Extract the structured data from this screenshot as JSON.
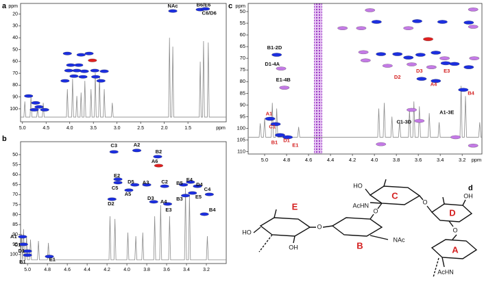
{
  "chart_data": [
    {
      "type": "contour",
      "panel_label": "a",
      "xlabel": "ppm",
      "ylabel": "ppm",
      "xlim": [
        5.04,
        0.69
      ],
      "ylim": [
        11,
        111
      ],
      "xticks": [
        {
          "value": 5,
          "label": "5.0"
        },
        4.5,
        {
          "value": 4,
          "label": "4.0"
        },
        3.5,
        {
          "value": 3,
          "label": "3.0"
        },
        2.5,
        {
          "value": 2,
          "label": "2.0"
        },
        1.5
      ],
      "yticks": [
        20,
        30,
        40,
        50,
        60,
        70,
        80,
        90,
        100
      ],
      "series": [
        {
          "color": "#1c2fe0",
          "x": [
            1.82,
            1.24,
            1.13,
            4.05,
            3.76,
            3.59,
            3.98,
            3.81,
            4.02,
            3.85,
            3.69,
            3.47,
            3.27,
            3.91,
            3.72,
            3.45,
            4.1,
            3.34,
            4.87,
            4.72,
            4.65,
            4.75,
            4.53
          ],
          "y": [
            17.4,
            16.2,
            15.6,
            53.3,
            54.4,
            53.3,
            63.1,
            63.1,
            67.7,
            67.7,
            68.3,
            67.7,
            68.3,
            72.4,
            73.0,
            73.0,
            76.4,
            76.4,
            89.2,
            95.0,
            98.4,
            100.8,
            100.8
          ]
        },
        {
          "color": "#e02020",
          "x": [
            3.52
          ],
          "y": [
            59.1
          ]
        }
      ],
      "trace": {
        "color": "#8a8a8a",
        "x": [
          5.04,
          4.97,
          4.95,
          4.93,
          4.84,
          4.82,
          4.8,
          4.7,
          4.68,
          4.66,
          4.58,
          4.56,
          4.54,
          4.07,
          4.05,
          4.03,
          3.96,
          3.94,
          3.92,
          3.87,
          3.85,
          3.83,
          3.78,
          3.76,
          3.74,
          3.7,
          3.68,
          3.66,
          3.57,
          3.55,
          3.53,
          3.48,
          3.46,
          3.44,
          3.39,
          3.37,
          3.35,
          3.29,
          3.27,
          3.25,
          3.12,
          3.1,
          3.08,
          1.91,
          1.89,
          1.87,
          1.84,
          1.82,
          1.8,
          1.26,
          1.24,
          1.22,
          1.19,
          1.17,
          1.15,
          1.09,
          1.07,
          1.05,
          0.69
        ],
        "y": [
          107,
          107,
          93.8,
          107,
          107,
          89.2,
          107,
          107,
          99.6,
          107,
          107,
          95.0,
          107,
          107,
          83.4,
          107,
          107,
          74.7,
          107,
          107,
          89.2,
          107,
          107,
          86.3,
          107,
          107,
          76.4,
          107,
          107,
          83.4,
          107,
          107,
          69.5,
          107,
          107,
          73.0,
          107,
          107,
          83.4,
          107,
          107,
          95.0,
          107,
          107,
          40.0,
          107,
          107,
          47.5,
          107,
          107,
          60.2,
          107,
          107,
          42.8,
          107,
          107,
          44.0,
          107,
          107
        ]
      },
      "annotations": [
        {
          "text": "NAc",
          "x": 1.82,
          "y": 13.3,
          "color": "#111111"
        },
        {
          "text": "B6/E6",
          "x": 1.17,
          "y": 12.5,
          "color": "#111111"
        },
        {
          "text": "C6/D6",
          "x": 1.05,
          "y": 19.5,
          "color": "#111111"
        }
      ]
    },
    {
      "type": "contour",
      "panel_label": "b",
      "xlim": [
        5.07,
        3.0
      ],
      "ylim": [
        43.5,
        104.5
      ],
      "xticks": [
        {
          "value": 5,
          "label": "5.0"
        },
        4.8,
        4.6,
        4.4,
        4.2,
        {
          "value": 4,
          "label": "4.0"
        },
        3.8,
        3.6,
        3.4,
        3.2
      ],
      "yticks": [
        50,
        55,
        60,
        65,
        70,
        75,
        80,
        85,
        90,
        95,
        100
      ],
      "series": [
        {
          "color": "#1c2fe0",
          "x": [
            4.13,
            3.9,
            3.69,
            4.09,
            4.09,
            3.92,
            3.8,
            3.98,
            3.62,
            3.43,
            3.36,
            3.29,
            3.34,
            3.17,
            3.41,
            4.15,
            3.73,
            3.59,
            3.22,
            5.05,
            5.04,
            5.0,
            5.0,
            4.78
          ],
          "y": [
            48.6,
            47.9,
            51.0,
            62.3,
            64.0,
            65.1,
            65.1,
            67.8,
            65.8,
            65.1,
            63.7,
            65.8,
            69.2,
            69.9,
            70.5,
            72.3,
            73.6,
            74.7,
            79.8,
            91.1,
            94.9,
            98.3,
            100.3,
            101.0
          ]
        },
        {
          "color": "#e02020",
          "x": [
            3.68
          ],
          "y": [
            55.5
          ]
        }
      ],
      "trace": {
        "color": "#8a8a8a",
        "x": [
          5.07,
          5.06,
          5.05,
          5.05,
          5.04,
          5.03,
          5.02,
          5.01,
          5.0,
          4.98,
          4.97,
          4.96,
          4.9,
          4.89,
          4.88,
          4.8,
          4.79,
          4.78,
          4.18,
          4.17,
          4.16,
          4.13,
          4.12,
          4.11,
          4.0,
          3.99,
          3.98,
          3.92,
          3.91,
          3.9,
          3.85,
          3.84,
          3.83,
          3.73,
          3.72,
          3.71,
          3.67,
          3.66,
          3.65,
          3.58,
          3.57,
          3.56,
          3.42,
          3.41,
          3.4,
          3.38,
          3.37,
          3.36,
          3.2,
          3.19,
          3.18,
          3.0
        ],
        "y": [
          102.7,
          89.7,
          102.7,
          102.7,
          87.3,
          102.7,
          102.7,
          90.8,
          102.7,
          102.7,
          92.5,
          102.7,
          102.7,
          93.2,
          102.7,
          102.7,
          94.2,
          102.7,
          102.7,
          80.8,
          102.7,
          102.7,
          82.2,
          102.7,
          102.7,
          89.0,
          102.7,
          102.7,
          90.8,
          102.7,
          102.7,
          89.0,
          102.7,
          102.7,
          80.8,
          102.7,
          102.7,
          75.3,
          102.7,
          102.7,
          80.8,
          102.7,
          102.7,
          66.8,
          102.7,
          102.7,
          70.2,
          102.7,
          102.7,
          90.8,
          102.7,
          102.7
        ]
      },
      "annotations": [
        {
          "text": "C3",
          "x": 4.13,
          "y": 45.5,
          "color": "#111111"
        },
        {
          "text": "A2",
          "x": 3.9,
          "y": 45.2,
          "color": "#111111"
        },
        {
          "text": "B2",
          "x": 3.68,
          "y": 48.6,
          "color": "#111111"
        },
        {
          "text": "A6",
          "x": 3.72,
          "y": 53.4,
          "color": "#111111"
        },
        {
          "text": "E2",
          "x": 4.1,
          "y": 60.6,
          "color": "#111111"
        },
        {
          "text": "C5",
          "x": 4.12,
          "y": 66.8,
          "color": "#111111"
        },
        {
          "text": "D5",
          "x": 3.96,
          "y": 63.7,
          "color": "#111111"
        },
        {
          "text": "A3",
          "x": 3.81,
          "y": 64.0,
          "color": "#111111"
        },
        {
          "text": "A5",
          "x": 3.99,
          "y": 69.9,
          "color": "#111111"
        },
        {
          "text": "C2",
          "x": 3.62,
          "y": 63.7,
          "color": "#111111"
        },
        {
          "text": "B5",
          "x": 3.47,
          "y": 64.4,
          "color": "#111111"
        },
        {
          "text": "E4",
          "x": 3.37,
          "y": 62.7,
          "color": "#111111"
        },
        {
          "text": "D4",
          "x": 3.27,
          "y": 65.1,
          "color": "#111111"
        },
        {
          "text": "C4",
          "x": 3.19,
          "y": 67.5,
          "color": "#111111"
        },
        {
          "text": "E5",
          "x": 3.28,
          "y": 71.2,
          "color": "#111111"
        },
        {
          "text": "B3",
          "x": 3.47,
          "y": 72.3,
          "color": "#111111"
        },
        {
          "text": "D2",
          "x": 4.16,
          "y": 74.7,
          "color": "#111111"
        },
        {
          "text": "D3",
          "x": 3.76,
          "y": 71.9,
          "color": "#111111"
        },
        {
          "text": "A4",
          "x": 3.63,
          "y": 73.6,
          "color": "#111111"
        },
        {
          "text": "E3",
          "x": 3.58,
          "y": 77.7,
          "color": "#111111"
        },
        {
          "text": "B4",
          "x": 3.14,
          "y": 77.7,
          "color": "#111111"
        },
        {
          "text": "A1",
          "x": 5.14,
          "y": 91.1,
          "color": "#111111"
        },
        {
          "text": "C1",
          "x": 5.1,
          "y": 95.2,
          "color": "#111111"
        },
        {
          "text": "D1",
          "x": 5.06,
          "y": 98.3,
          "color": "#111111"
        },
        {
          "text": "B1",
          "x": 5.05,
          "y": 103.8,
          "color": "#111111"
        },
        {
          "text": "E1",
          "x": 4.75,
          "y": 102.7,
          "color": "#111111"
        }
      ]
    },
    {
      "type": "contour",
      "panel_label": "c",
      "xlabel": "ppm",
      "ylabel": "ppm",
      "xlim": [
        5.15,
        3.02
      ],
      "ylim": [
        46.5,
        111
      ],
      "xticks": [
        {
          "value": 5,
          "label": "5.0"
        },
        4.8,
        4.6,
        4.4,
        4.2,
        {
          "value": 4,
          "label": "4.0"
        },
        3.8,
        3.6,
        3.4,
        3.2
      ],
      "yticks": [
        50,
        55,
        60,
        65,
        70,
        75,
        80,
        85,
        90,
        95,
        100,
        105,
        110
      ],
      "series": [
        {
          "color": "#c47ae6",
          "x": [
            4.1,
            3.09,
            4.08,
            3.88,
            3.66,
            3.48,
            3.36,
            4.85,
            4.82,
            4.12,
            4.29,
            3.69,
            3.1,
            3.1,
            4.04,
            3.66,
            3.59,
            3.26,
            3.1,
            3.94
          ],
          "y": [
            67.4,
            70.0,
            70.9,
            73.2,
            72.6,
            73.8,
            70.0,
            74.4,
            82.6,
            57.1,
            57.1,
            57.1,
            56.5,
            49.1,
            49.4,
            92.1,
            96.8,
            103.8,
            107.4,
            106.8
          ]
        },
        {
          "color": "#1c2fe0",
          "x": [
            3.98,
            3.61,
            3.38,
            3.14,
            3.94,
            3.79,
            3.69,
            3.58,
            3.44,
            3.35,
            3.27,
            3.14,
            3.57,
            3.44,
            3.19,
            4.89,
            4.95,
            4.9,
            4.86,
            4.79
          ],
          "y": [
            54.4,
            54.1,
            54.4,
            54.7,
            68.2,
            68.2,
            69.7,
            68.5,
            67.6,
            72.1,
            72.4,
            73.8,
            78.8,
            79.7,
            83.5,
            68.5,
            95.9,
            98.2,
            102.9,
            103.8
          ]
        },
        {
          "color": "#e02020",
          "x": [
            3.51
          ],
          "y": [
            61.8
          ]
        }
      ],
      "trace": {
        "color": "#8a8a8a",
        "x": [
          5.15,
          5.05,
          5.04,
          5.03,
          5.01,
          5.0,
          4.99,
          4.94,
          4.93,
          4.92,
          4.9,
          4.89,
          4.88,
          4.7,
          4.69,
          4.68,
          3.97,
          3.96,
          3.95,
          3.92,
          3.91,
          3.9,
          3.85,
          3.84,
          3.83,
          3.78,
          3.77,
          3.76,
          3.69,
          3.68,
          3.67,
          3.65,
          3.64,
          3.63,
          3.6,
          3.59,
          3.58,
          3.51,
          3.5,
          3.49,
          3.42,
          3.41,
          3.4,
          3.22,
          3.21,
          3.2,
          3.18,
          3.17,
          3.16,
          3.05,
          3.04,
          3.03,
          3.02
        ],
        "y": [
          103.8,
          103.8,
          97.9,
          103.8,
          103.8,
          95.6,
          103.8,
          103.8,
          89.1,
          103.8,
          103.8,
          91.5,
          103.8,
          103.8,
          99.4,
          103.8,
          103.8,
          91.5,
          103.8,
          103.8,
          89.1,
          103.8,
          103.8,
          95.0,
          103.8,
          103.8,
          96.5,
          103.8,
          103.8,
          92.1,
          103.8,
          103.8,
          88.5,
          103.8,
          103.8,
          90.6,
          103.8,
          103.8,
          93.5,
          103.8,
          103.8,
          97.4,
          103.8,
          103.8,
          81.8,
          103.8,
          103.8,
          86.2,
          103.8,
          103.8,
          97.4,
          103.8,
          103.8
        ]
      },
      "annotations": [
        {
          "text": "B1-2D",
          "x": 4.91,
          "y": 65.6,
          "color": "#111111"
        },
        {
          "text": "D1-4A",
          "x": 4.93,
          "y": 72.6,
          "color": "#111111"
        },
        {
          "text": "E1-4B",
          "x": 4.83,
          "y": 79.4,
          "color": "#111111"
        },
        {
          "text": "A1-3E",
          "x": 3.34,
          "y": 93.2,
          "color": "#111111"
        },
        {
          "text": "C1-3D",
          "x": 3.73,
          "y": 97.4,
          "color": "#111111"
        },
        {
          "text": "A1",
          "x": 4.96,
          "y": 93.8,
          "color": "#d42020"
        },
        {
          "text": "C1",
          "x": 4.93,
          "y": 99.4,
          "color": "#d42020"
        },
        {
          "text": "B1",
          "x": 4.91,
          "y": 106.2,
          "color": "#d42020"
        },
        {
          "text": "D1",
          "x": 4.8,
          "y": 105.3,
          "color": "#d42020"
        },
        {
          "text": "E1",
          "x": 4.72,
          "y": 107.4,
          "color": "#d42020"
        },
        {
          "text": "D2",
          "x": 3.79,
          "y": 78.2,
          "color": "#d42020"
        },
        {
          "text": "D3",
          "x": 3.59,
          "y": 75.6,
          "color": "#d42020"
        },
        {
          "text": "E3",
          "x": 3.34,
          "y": 75.6,
          "color": "#d42020"
        },
        {
          "text": "A4",
          "x": 3.46,
          "y": 81.2,
          "color": "#d42020"
        },
        {
          "text": "B4",
          "x": 3.12,
          "y": 85.0,
          "color": "#d42020"
        }
      ]
    }
  ],
  "structure": {
    "panel_label": "d",
    "residues": [
      "E",
      "C",
      "D",
      "B",
      "A"
    ],
    "groups": [
      "HO",
      "OH",
      "O",
      "NAc",
      "O",
      "HO",
      "AcHN",
      "O",
      "OH",
      "O",
      "AcHN"
    ]
  }
}
